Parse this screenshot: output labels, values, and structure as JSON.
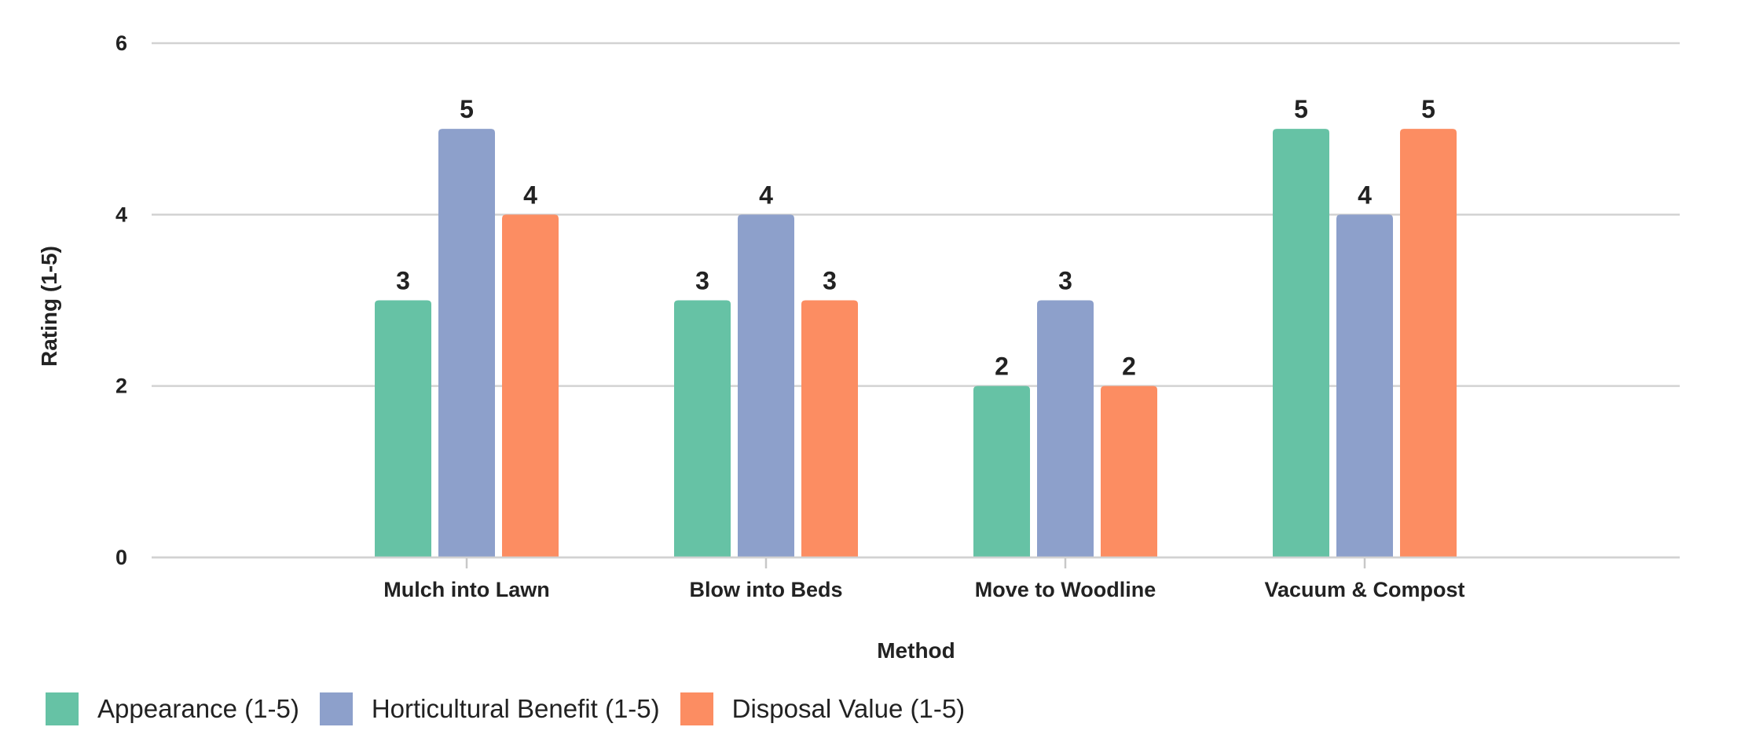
{
  "chart_data": {
    "type": "bar",
    "categories": [
      "Mulch into Lawn",
      "Blow into Beds",
      "Move to Woodline",
      "Vacuum & Compost"
    ],
    "series": [
      {
        "name": "Appearance (1-5)",
        "values": [
          3,
          3,
          2,
          5
        ],
        "color": "#66c2a5"
      },
      {
        "name": "Horticultural Benefit (1-5)",
        "values": [
          5,
          4,
          3,
          4
        ],
        "color": "#8da0cb"
      },
      {
        "name": "Disposal Value (1-5)",
        "values": [
          4,
          3,
          2,
          5
        ],
        "color": "#fc8d62"
      }
    ],
    "title": "",
    "xlabel": "Method",
    "ylabel": "Rating (1-5)",
    "ylim": [
      0,
      6
    ],
    "yticks": [
      0,
      2,
      4,
      6
    ],
    "grid": true,
    "legend_position": "bottom-left"
  }
}
